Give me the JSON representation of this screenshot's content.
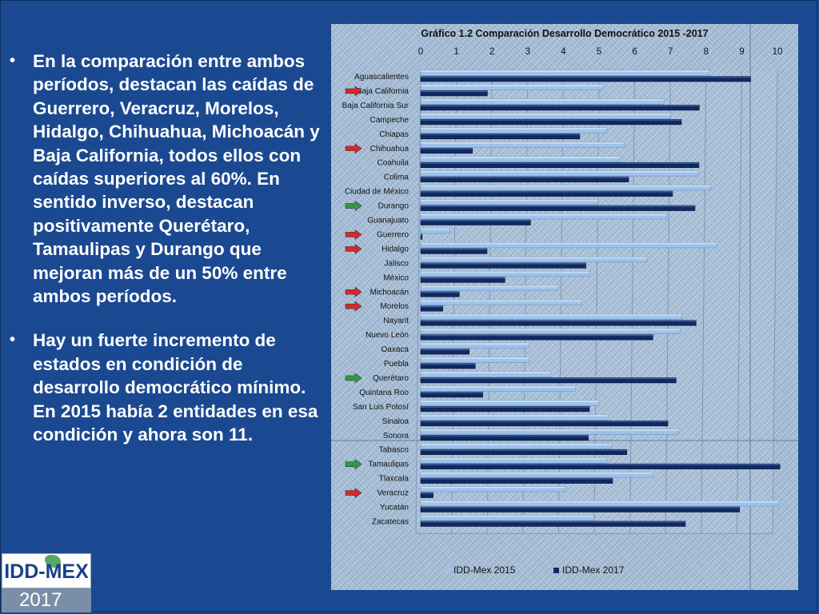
{
  "bullets": {
    "items": [
      "En la comparación entre ambos períodos, destacan las caídas de Guerrero, Veracruz, Morelos, Hidalgo, Chihuahua, Michoacán y Baja California, todos ellos con caídas superiores al 60%. En sentido inverso, destacan positivamente Querétaro, Tamaulipas y Durango que mejoran más de un 50% entre ambos períodos.",
      "Hay un fuerte incremento de estados en condición de desarrollo democrático mínimo. En 2015 había 2 entidades en esa condición y ahora son 11."
    ]
  },
  "logo": {
    "name": "IDD-MEX",
    "year": "2017"
  },
  "colors": {
    "background": "#1b4991",
    "series_2015": "#9dc3ec",
    "series_2017": "#0f2a63",
    "arrow_red": "#d8262a",
    "arrow_green": "#2f9a45"
  },
  "chart_data": {
    "type": "bar",
    "orientation": "horizontal",
    "title": "Gráfico 1.2  Comparación Desarrollo Democrático  2015 -2017",
    "xlim": [
      0,
      10
    ],
    "x_ticks": [
      0,
      1,
      2,
      3,
      4,
      5,
      6,
      7,
      8,
      9,
      10
    ],
    "categories": [
      "Aguascalientes",
      "Baja California",
      "Baja California Sur",
      "Campeche",
      "Chiapas",
      "Chihuahua",
      "Coahuila",
      "Colima",
      "Ciudad de México",
      "Durango",
      "Guanajuato",
      "Guerrero",
      "Hidalgo",
      "Jalisco",
      "México",
      "Michoacán",
      "Morelos",
      "Nayarit",
      "Nuevo León",
      "Oaxaca",
      "Puebla",
      "Querétaro",
      "Quintana Roo",
      "San Luis Potosí",
      "Sinaloa",
      "Sonora",
      "Tabasco",
      "Tamaulipas",
      "Tlaxcala",
      "Veracruz",
      "Yucatán",
      "Zacatecas"
    ],
    "series": [
      {
        "name": "IDD-Mex 2015",
        "values": [
          8.08,
          5.13,
          6.82,
          7.0,
          5.22,
          5.7,
          5.6,
          7.78,
          8.13,
          4.97,
          6.9,
          0.82,
          8.3,
          6.36,
          4.73,
          3.86,
          4.52,
          7.31,
          7.27,
          3.03,
          3.04,
          3.64,
          4.34,
          5.0,
          5.25,
          7.22,
          5.35,
          5.21,
          6.5,
          4.07,
          10.04,
          4.86
        ]
      },
      {
        "name": "IDD-Mex 2017",
        "values": [
          9.25,
          1.87,
          7.81,
          7.31,
          4.46,
          1.45,
          7.8,
          5.83,
          7.06,
          7.69,
          3.08,
          0.04,
          1.86,
          4.63,
          2.36,
          1.08,
          0.62,
          7.72,
          6.51,
          1.36,
          1.53,
          7.16,
          1.74,
          4.73,
          6.93,
          4.7,
          5.78,
          10.07,
          5.38,
          0.35,
          8.94,
          7.42
        ]
      }
    ],
    "arrows": [
      {
        "category": "Baja California",
        "type": "red"
      },
      {
        "category": "Chihuahua",
        "type": "red"
      },
      {
        "category": "Durango",
        "type": "green"
      },
      {
        "category": "Guerrero",
        "type": "red"
      },
      {
        "category": "Hidalgo",
        "type": "red"
      },
      {
        "category": "Michoacán",
        "type": "red"
      },
      {
        "category": "Morelos",
        "type": "red"
      },
      {
        "category": "Querétaro",
        "type": "green"
      },
      {
        "category": "Tamaulipas",
        "type": "green"
      },
      {
        "category": "Veracruz",
        "type": "red"
      }
    ],
    "legend": [
      "IDD-Mex 2015",
      "IDD-Mex 2017"
    ],
    "legend_position": "bottom"
  }
}
